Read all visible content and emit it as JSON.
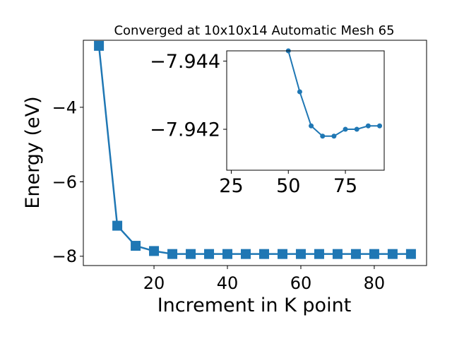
{
  "chart_data": [
    {
      "type": "line",
      "title": "Converged at 10x10x14 Automatic Mesh 65",
      "xlabel": "Increment in K point",
      "ylabel": "Energy (eV)",
      "xlim": [
        0.75,
        94.25
      ],
      "ylim": [
        -8.25,
        -2.2
      ],
      "xticks": [
        20,
        40,
        60,
        80
      ],
      "yticks": [
        -8,
        -6,
        -4
      ],
      "grid": false,
      "series": [
        {
          "color": "#1f77b4",
          "marker": "square",
          "x": [
            5,
            10,
            15,
            20,
            25,
            30,
            35,
            40,
            45,
            50,
            55,
            60,
            65,
            70,
            75,
            80,
            85,
            90
          ],
          "y": [
            -2.35,
            -7.18,
            -7.72,
            -7.86,
            -7.94,
            -7.94,
            -7.94,
            -7.94,
            -7.94,
            -7.94,
            -7.94,
            -7.94,
            -7.94,
            -7.94,
            -7.94,
            -7.94,
            -7.94,
            -7.94
          ]
        }
      ]
    },
    {
      "type": "line",
      "title": "",
      "xlabel": "",
      "ylabel": "",
      "xlim": [
        23,
        92
      ],
      "ylim": [
        -7.9408,
        -7.9443
      ],
      "xticks": [
        25,
        50,
        75
      ],
      "yticks": [
        -7.944,
        -7.942
      ],
      "grid": false,
      "series": [
        {
          "color": "#1f77b4",
          "marker": "circle",
          "x": [
            50,
            55,
            60,
            65,
            70,
            75,
            80,
            85,
            90
          ],
          "y": [
            -7.9443,
            -7.9431,
            -7.9421,
            -7.9418,
            -7.9418,
            -7.942,
            -7.942,
            -7.9421,
            -7.9421
          ]
        }
      ]
    }
  ]
}
